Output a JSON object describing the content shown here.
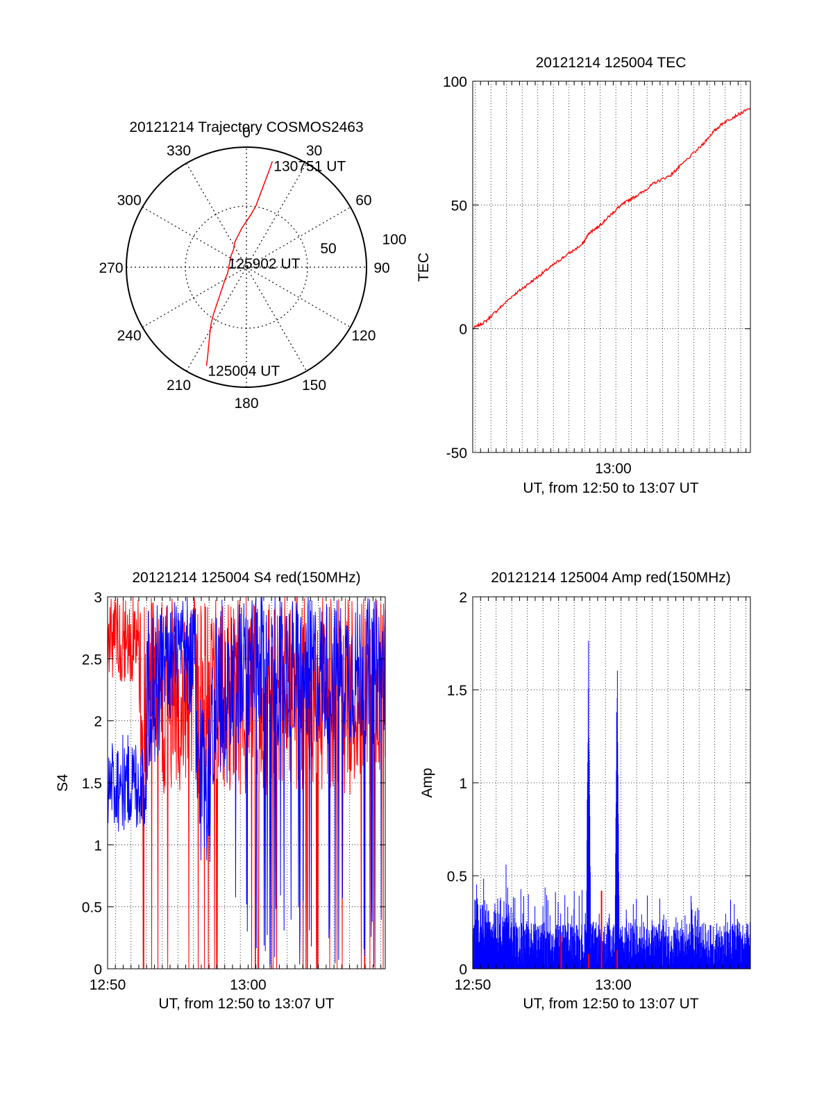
{
  "colors": {
    "red": "#ff0000",
    "blue": "#0000ff",
    "axis": "#000000",
    "grid": "#000000"
  },
  "chart_data": [
    {
      "type": "polar",
      "title": "20121214 Trajectory COSMOS2463",
      "azimuth_labels": [
        "0",
        "30",
        "60",
        "90",
        "120",
        "150",
        "180",
        "210",
        "240",
        "270",
        "300",
        "330"
      ],
      "radial_labels": [
        "50",
        "100"
      ],
      "grid": true,
      "series": [
        {
          "color": "red",
          "points": [
            [
              22,
              90
            ],
            [
              20,
              84
            ],
            [
              17,
              76
            ],
            [
              14,
              68
            ],
            [
              11,
              60
            ],
            [
              8,
              52
            ],
            [
              4,
              45
            ],
            [
              0,
              39
            ],
            [
              -4,
              33
            ],
            [
              -7,
              27
            ],
            [
              -10,
              21
            ],
            [
              -11,
              15
            ],
            [
              -13,
              10
            ],
            [
              -14,
              5
            ],
            [
              -15,
              0
            ],
            [
              -16,
              -5
            ],
            [
              -18,
              -10
            ],
            [
              -20,
              -16
            ],
            [
              -22,
              -22
            ],
            [
              -24,
              -28
            ],
            [
              -26,
              -34
            ],
            [
              -28,
              -40
            ],
            [
              -30,
              -48
            ],
            [
              -31,
              -56
            ],
            [
              -32,
              -66
            ],
            [
              -33,
              -76
            ],
            [
              -34,
              -84
            ]
          ]
        }
      ],
      "annotations": [
        {
          "text": "130751 UT",
          "at": [
            22,
            90
          ]
        },
        {
          "text": "125902 UT",
          "at": [
            -5,
            0
          ]
        },
        {
          "text": "125004 UT",
          "at": [
            -34,
            -84
          ]
        }
      ]
    },
    {
      "type": "line",
      "title": "20121214 125004 TEC",
      "xlabel": "UT, from 12:50 to 13:07 UT",
      "ylabel": "TEC",
      "xlim": [
        0,
        1067
      ],
      "ylim": [
        -50,
        100
      ],
      "x_ticks": [
        {
          "value": 540,
          "label": "13:00"
        }
      ],
      "y_ticks": [
        {
          "value": -50,
          "label": "-50"
        },
        {
          "value": 0,
          "label": "0"
        },
        {
          "value": 50,
          "label": "50"
        },
        {
          "value": 100,
          "label": "100"
        }
      ],
      "grid": true,
      "series": [
        {
          "color": "red",
          "x": [
            0,
            50,
            100,
            150,
            200,
            250,
            300,
            350,
            420,
            450,
            480,
            520,
            560,
            600,
            650,
            700,
            760,
            800,
            880,
            920,
            960,
            1010,
            1067
          ],
          "y": [
            0,
            3,
            8,
            13,
            17,
            21,
            25,
            29,
            34,
            39,
            41,
            45,
            49,
            52,
            55,
            59,
            62,
            66,
            74,
            79,
            83,
            86,
            89
          ]
        }
      ]
    },
    {
      "type": "line",
      "title": "20121214 125004 S4 red(150MHz)",
      "xlabel": "UT, from 12:50 to 13:07 UT",
      "ylabel": "S4",
      "xlim": [
        0,
        1067
      ],
      "ylim": [
        0,
        3
      ],
      "x_ticks": [
        {
          "value": 0,
          "label": "12:50"
        },
        {
          "value": 540,
          "label": "13:00"
        }
      ],
      "y_ticks": [
        {
          "value": 0,
          "label": "0"
        },
        {
          "value": 0.5,
          "label": "0.5"
        },
        {
          "value": 1,
          "label": "1"
        },
        {
          "value": 1.5,
          "label": "1.5"
        },
        {
          "value": 2,
          "label": "2"
        },
        {
          "value": 2.5,
          "label": "2.5"
        },
        {
          "value": 3,
          "label": "3"
        }
      ],
      "grid": true,
      "series": [
        {
          "color": "red",
          "style": "dense-noise"
        },
        {
          "color": "blue",
          "style": "dense-noise"
        }
      ]
    },
    {
      "type": "line",
      "title": "20121214 125004 Amp red(150MHz)",
      "xlabel": "UT, from 12:50 to 13:07 UT",
      "ylabel": "Amp",
      "xlim": [
        0,
        1067
      ],
      "ylim": [
        0,
        2
      ],
      "x_ticks": [
        {
          "value": 0,
          "label": "12:50"
        },
        {
          "value": 540,
          "label": "13:00"
        }
      ],
      "y_ticks": [
        {
          "value": 0,
          "label": "0"
        },
        {
          "value": 0.5,
          "label": "0.5"
        },
        {
          "value": 1,
          "label": "1"
        },
        {
          "value": 1.5,
          "label": "1.5"
        },
        {
          "value": 2,
          "label": "2"
        }
      ],
      "grid": true,
      "peaks": [
        {
          "x": 445,
          "y": 1.96
        },
        {
          "x": 555,
          "y": 1.82
        }
      ],
      "series": [
        {
          "color": "blue",
          "style": "dense-noise"
        },
        {
          "color": "red",
          "style": "sparse-spikes"
        }
      ]
    }
  ]
}
